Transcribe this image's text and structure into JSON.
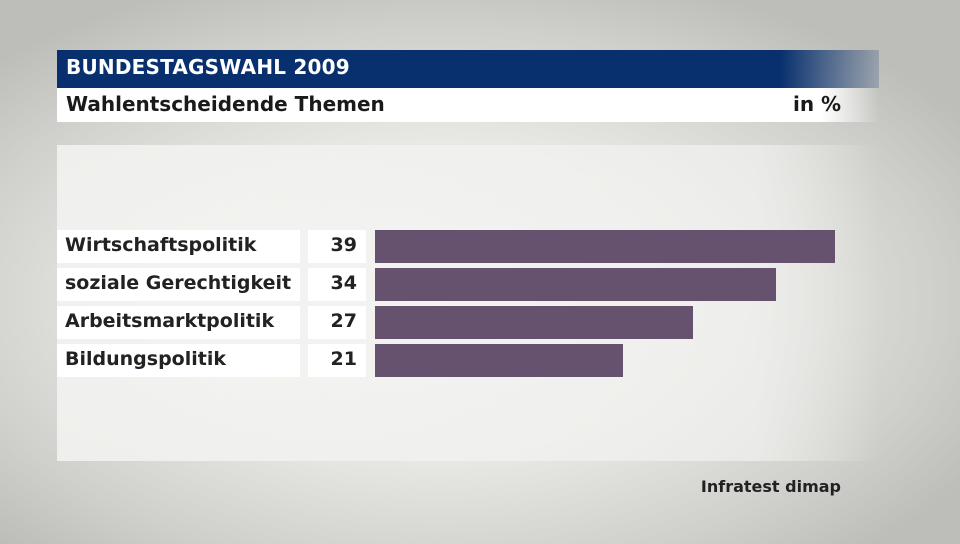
{
  "header": {
    "title": "BUNDESTAGSWAHL 2009",
    "subtitle": "Wahlentscheidende Themen",
    "unit": "in %"
  },
  "chart_data": {
    "type": "bar",
    "orientation": "horizontal",
    "categories": [
      "Wirtschaftspolitik",
      "soziale Gerechtigkeit",
      "Arbeitsmarktpolitik",
      "Bildungspolitik"
    ],
    "values": [
      39,
      34,
      27,
      21
    ],
    "title": "BUNDESTAGSWAHL 2009",
    "subtitle": "Wahlentscheidende Themen",
    "unit": "in %",
    "xlim": [
      0,
      39
    ],
    "bar_color": "#66526f",
    "grid": false
  },
  "source": "Infratest dimap",
  "colors": {
    "title_bar": "#08306e",
    "bar": "#66526f"
  }
}
